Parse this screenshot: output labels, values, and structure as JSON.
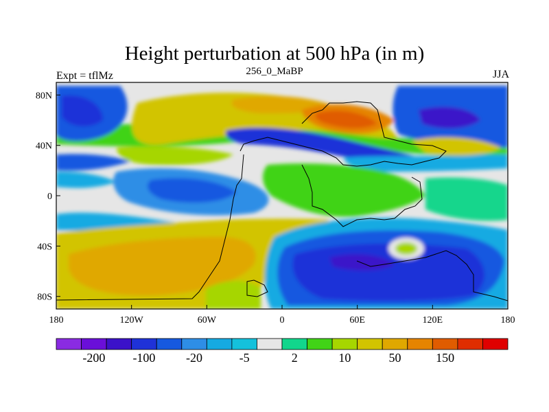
{
  "figure": {
    "title": "Height perturbation at 500 hPa (in m)",
    "left_string": "Expt = tflMz",
    "center_string": "256_0_MaBP",
    "right_string": "JJA"
  },
  "map": {
    "projection": "cylindrical equidistant",
    "lon_range": [
      -180,
      180
    ],
    "lat_range": [
      -90,
      90
    ],
    "lon_tick_values": [
      -180,
      -120,
      -60,
      0,
      60,
      120,
      180
    ],
    "lon_tick_labels": [
      "180",
      "120W",
      "60W",
      "0",
      "60E",
      "120E",
      "180"
    ],
    "lat_tick_values": [
      80,
      40,
      0,
      -40,
      -80
    ],
    "lat_tick_labels": [
      "80N",
      "40N",
      "0",
      "40S",
      "80S"
    ]
  },
  "colorbar": {
    "colors": [
      "#8a2be2",
      "#6a0fd9",
      "#3b12c9",
      "#1f32d8",
      "#1659e0",
      "#2e8ee6",
      "#15aae2",
      "#14c1dc",
      "#e6e6e6",
      "#12d68c",
      "#41d317",
      "#a6d600",
      "#d2c400",
      "#e0a800",
      "#e58400",
      "#e05c00",
      "#e02d00",
      "#e00000"
    ],
    "labels": [
      "-200",
      "-100",
      "-20",
      "-5",
      "2",
      "10",
      "50",
      "150"
    ]
  }
}
